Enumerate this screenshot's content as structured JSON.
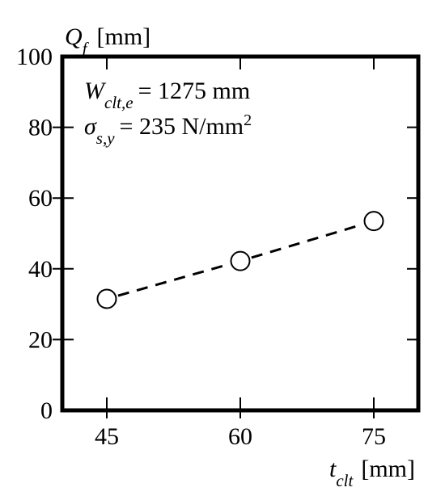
{
  "chart_data": {
    "type": "scatter",
    "x": [
      45,
      60,
      75
    ],
    "series": [
      {
        "values": [
          31.5,
          42.2,
          53.5
        ],
        "marker": "open-circle",
        "trend_line": "dashed"
      }
    ],
    "xlim": [
      40,
      80
    ],
    "ylim": [
      0,
      100
    ],
    "x_ticks": [
      45,
      60,
      75
    ],
    "y_ticks": [
      0,
      20,
      40,
      60,
      80,
      100
    ],
    "xlabel": {
      "symbol": "t",
      "subscript": "clt",
      "unit": "[mm]"
    },
    "ylabel": {
      "symbol": "Q",
      "subscript": "f",
      "unit": "[mm]"
    },
    "annotations": [
      {
        "symbol": "W",
        "subscript": "clt,e",
        "value": "= 1275 mm"
      },
      {
        "symbol": "σ",
        "subscript": "s,y",
        "value": "= 235 N/mm",
        "superscript": "2"
      }
    ],
    "grid": false,
    "legend": "none",
    "colors": {
      "line": "#000000",
      "marker_fill": "#ffffff"
    }
  }
}
